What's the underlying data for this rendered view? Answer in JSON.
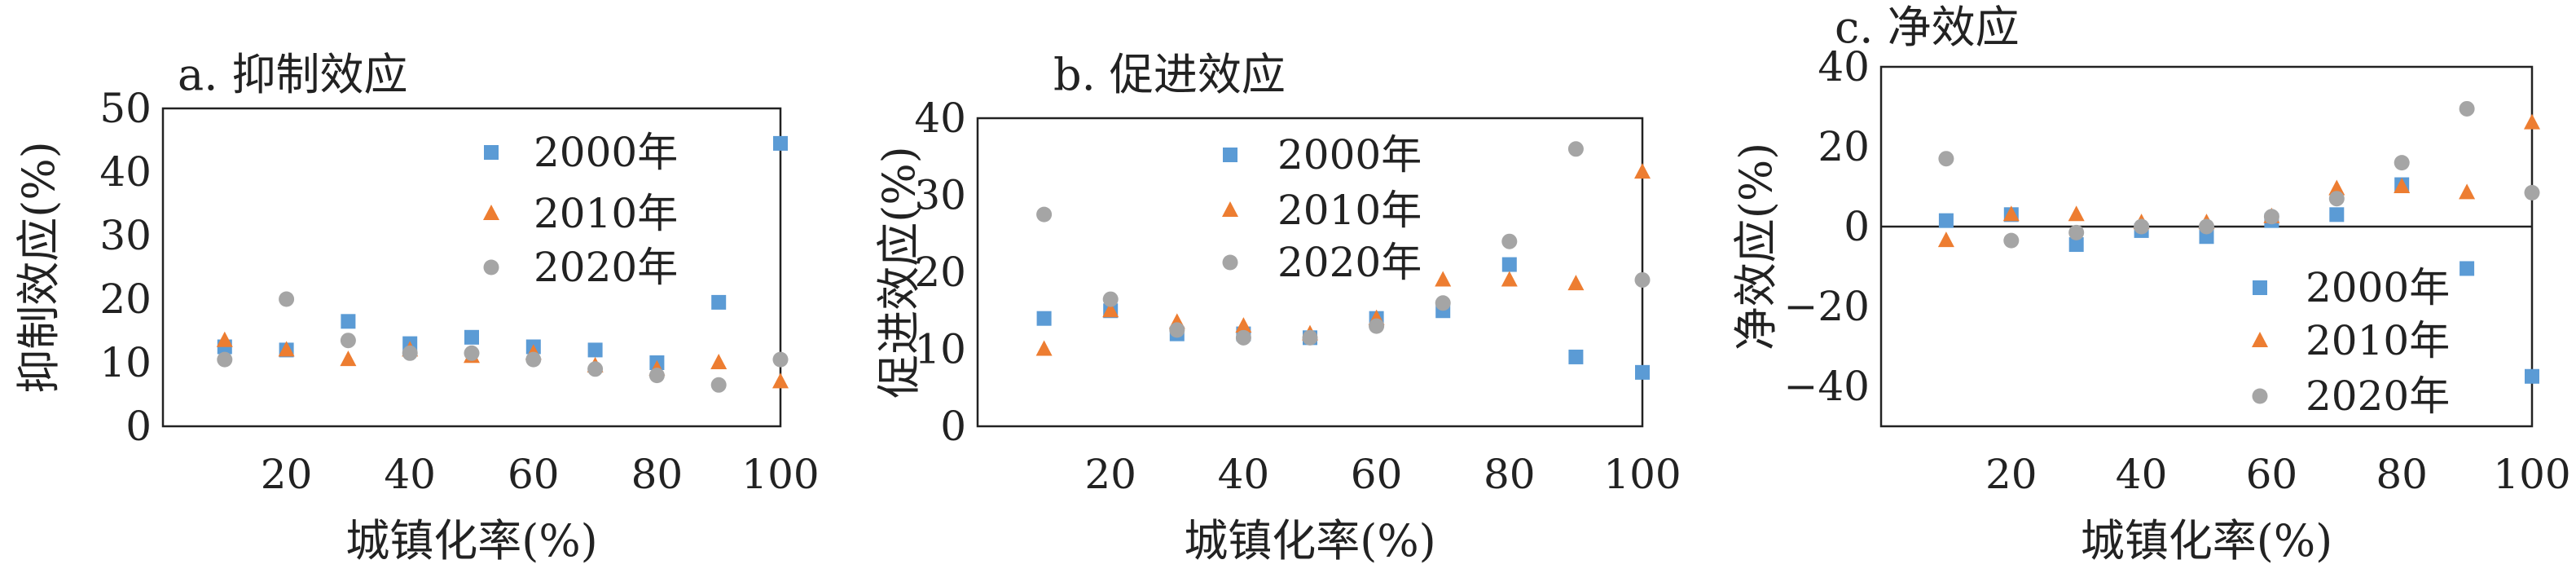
{
  "chart_data": [
    {
      "type": "scatter",
      "title": "a. 抑制效应",
      "xlabel": "城镇化率(%)",
      "ylabel": "抑制效应(%)",
      "xlim": [
        0,
        100
      ],
      "ylim": [
        0,
        50
      ],
      "xticks": [
        20,
        40,
        60,
        80,
        100
      ],
      "yticks": [
        0,
        10,
        20,
        30,
        40,
        50
      ],
      "grid": false,
      "legend_position": "top-right",
      "series": [
        {
          "name": "2000年",
          "marker": "square",
          "color": "#5b9bd5",
          "x": [
            10,
            20,
            30,
            40,
            50,
            60,
            70,
            80,
            90,
            100
          ],
          "y": [
            12.5,
            12.0,
            16.5,
            13.0,
            14.0,
            12.5,
            12.0,
            10.0,
            19.5,
            44.5
          ]
        },
        {
          "name": "2010年",
          "marker": "triangle",
          "color": "#ed7d31",
          "x": [
            10,
            20,
            30,
            40,
            50,
            60,
            70,
            80,
            90,
            100
          ],
          "y": [
            13.5,
            12.0,
            10.5,
            12.0,
            11.0,
            11.5,
            9.5,
            9.0,
            10.0,
            7.0
          ]
        },
        {
          "name": "2020年",
          "marker": "circle",
          "color": "#a5a5a5",
          "x": [
            10,
            20,
            30,
            40,
            50,
            60,
            70,
            80,
            90,
            100
          ],
          "y": [
            10.5,
            20.0,
            13.5,
            11.5,
            11.5,
            10.5,
            9.0,
            8.0,
            6.5,
            10.5
          ]
        }
      ]
    },
    {
      "type": "scatter",
      "title": "b. 促进效应",
      "xlabel": "城镇化率(%)",
      "ylabel": "促进效应(%)",
      "xlim": [
        0,
        100
      ],
      "ylim": [
        0,
        40
      ],
      "xticks": [
        20,
        40,
        60,
        80,
        100
      ],
      "yticks": [
        0,
        10,
        20,
        30,
        40
      ],
      "grid": false,
      "legend_position": "top-center",
      "series": [
        {
          "name": "2000年",
          "marker": "square",
          "color": "#5b9bd5",
          "x": [
            10,
            20,
            30,
            40,
            50,
            60,
            70,
            80,
            90,
            100
          ],
          "y": [
            14.0,
            15.0,
            12.0,
            12.0,
            11.5,
            14.0,
            15.0,
            21.0,
            9.0,
            7.0
          ]
        },
        {
          "name": "2010年",
          "marker": "triangle",
          "color": "#ed7d31",
          "x": [
            10,
            20,
            30,
            40,
            50,
            60,
            70,
            80,
            90,
            100
          ],
          "y": [
            10.0,
            15.0,
            13.5,
            13.0,
            12.0,
            14.0,
            19.0,
            19.0,
            18.5,
            33.0
          ]
        },
        {
          "name": "2020年",
          "marker": "circle",
          "color": "#a5a5a5",
          "x": [
            10,
            20,
            30,
            40,
            50,
            60,
            70,
            80,
            90,
            100
          ],
          "y": [
            27.5,
            16.5,
            12.5,
            11.5,
            11.5,
            13.0,
            16.0,
            24.0,
            36.0,
            19.0
          ]
        }
      ]
    },
    {
      "type": "scatter",
      "title": "c. 净效应",
      "xlabel": "城镇化率(%)",
      "ylabel": "净效应(%)",
      "xlim": [
        0,
        100
      ],
      "ylim": [
        -50,
        40
      ],
      "xticks": [
        20,
        40,
        60,
        80,
        100
      ],
      "yticks": [
        -40,
        -20,
        0,
        20,
        40
      ],
      "ytick_labels": [
        "−40",
        "−20",
        "0",
        "20",
        "40"
      ],
      "grid": false,
      "zero_line": true,
      "legend_position": "bottom-right",
      "series": [
        {
          "name": "2000年",
          "marker": "square",
          "color": "#5b9bd5",
          "x": [
            10,
            20,
            30,
            40,
            50,
            60,
            70,
            80,
            90,
            100
          ],
          "y": [
            1.5,
            3.0,
            -4.5,
            -1.0,
            -2.5,
            1.5,
            3.0,
            10.5,
            -10.5,
            -37.5
          ]
        },
        {
          "name": "2010年",
          "marker": "triangle",
          "color": "#ed7d31",
          "x": [
            10,
            20,
            30,
            40,
            50,
            60,
            70,
            80,
            90,
            100
          ],
          "y": [
            -3.5,
            3.0,
            3.0,
            1.0,
            1.0,
            2.5,
            9.5,
            10.0,
            8.5,
            26.0
          ]
        },
        {
          "name": "2020年",
          "marker": "circle",
          "color": "#a5a5a5",
          "x": [
            10,
            20,
            30,
            40,
            50,
            60,
            70,
            80,
            90,
            100
          ],
          "y": [
            17.0,
            -3.5,
            -1.5,
            0.0,
            0.0,
            2.5,
            7.0,
            16.0,
            29.5,
            8.5
          ]
        }
      ]
    }
  ]
}
